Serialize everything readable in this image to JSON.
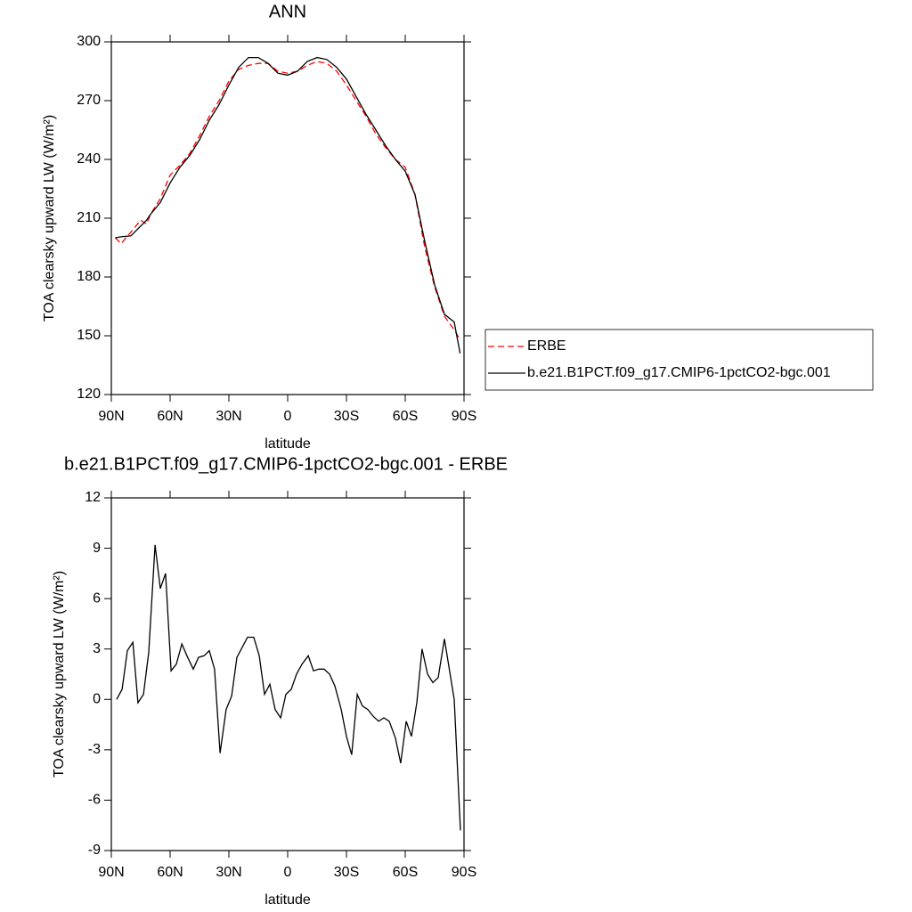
{
  "chart_data": [
    {
      "type": "line",
      "title": "ANN",
      "x_label": "latitude",
      "y_label": "TOA clearsky upward LW (W/m²)",
      "x": [
        88,
        85,
        80,
        75,
        72,
        70,
        65,
        60,
        55,
        50,
        45,
        40,
        35,
        30,
        25,
        20,
        15,
        10,
        5,
        0,
        -5,
        -10,
        -15,
        -20,
        -25,
        -30,
        -35,
        -40,
        -45,
        -50,
        -55,
        -60,
        -65,
        -70,
        -75,
        -80,
        -85,
        -88
      ],
      "series": [
        {
          "name": "ERBE",
          "color": "#ff0000",
          "line_style": "dashed",
          "values": [
            200,
            197,
            203,
            209,
            207,
            212,
            220,
            232,
            237,
            243,
            252,
            262,
            270,
            280,
            286,
            288,
            289,
            289,
            285,
            284,
            285,
            288,
            290,
            289,
            285,
            278,
            270,
            262,
            253,
            246,
            240,
            236,
            222,
            195,
            175,
            160,
            153,
            148
          ]
        },
        {
          "name": "b.e21.B1PCT.f09_g17.CMIP6-1pctCO2-bgc.001",
          "color": "#000000",
          "line_style": "solid",
          "values": [
            200,
            200.5,
            201,
            206,
            209,
            212,
            218,
            228,
            236,
            242,
            250,
            260,
            268,
            278,
            287,
            292,
            292,
            289,
            284,
            283,
            285,
            290,
            292,
            291,
            287,
            281,
            272,
            263,
            255,
            247,
            240,
            234,
            222,
            198,
            176,
            161,
            157,
            141
          ]
        }
      ],
      "xlim": [
        90,
        -90
      ],
      "xticks": [
        {
          "value": 90,
          "label": "90N"
        },
        {
          "value": 60,
          "label": "60N"
        },
        {
          "value": 30,
          "label": "30N"
        },
        0,
        {
          "value": -30,
          "label": "30S"
        },
        {
          "value": -60,
          "label": "60S"
        },
        {
          "value": -90,
          "label": "90S"
        }
      ],
      "ylim": [
        120,
        300
      ],
      "yticks": [
        120,
        150,
        180,
        210,
        240,
        270,
        300
      ],
      "legend": "right"
    },
    {
      "type": "line",
      "title": "b.e21.B1PCT.f09_g17.CMIP6-1pctCO2-bgc.001 - ERBE",
      "x_label": "latitude",
      "y_label": "TOA clearsky upward LW (W/m²)",
      "x": [
        87.3,
        84.5,
        81.8,
        79,
        76.4,
        73.6,
        70.9,
        67.7,
        65,
        62.3,
        59.5,
        56.8,
        54,
        51.4,
        48.2,
        45.5,
        42.7,
        40,
        37.3,
        34.5,
        31.4,
        28.6,
        25.9,
        23.2,
        20.5,
        17.3,
        14.5,
        11.8,
        9.1,
        6.4,
        3.6,
        0.9,
        -1.8,
        -4.5,
        -7.3,
        -10.5,
        -13.2,
        -15.9,
        -18.6,
        -21.4,
        -24.1,
        -27.3,
        -30,
        -32.7,
        -35.5,
        -38.2,
        -40.9,
        -43.6,
        -46.4,
        -49.1,
        -51.8,
        -55,
        -57.7,
        -60.5,
        -63.2,
        -65.9,
        -68.6,
        -71.4,
        -74.1,
        -76.8,
        -80,
        -85,
        -88.2
      ],
      "series": [
        {
          "color": "#000000",
          "line_style": "solid",
          "values": [
            0.0,
            0.6,
            2.9,
            3.4,
            -0.2,
            0.3,
            2.8,
            9.2,
            6.6,
            7.5,
            1.7,
            2.1,
            3.3,
            2.6,
            1.8,
            2.5,
            2.6,
            2.9,
            1.8,
            -3.2,
            -0.6,
            0.2,
            2.5,
            3.1,
            3.7,
            3.7,
            2.6,
            0.3,
            0.9,
            -0.6,
            -1.1,
            0.3,
            0.6,
            1.5,
            2.1,
            2.6,
            1.7,
            1.8,
            1.8,
            1.5,
            0.8,
            -0.6,
            -2.2,
            -3.3,
            0.3,
            -0.4,
            -0.6,
            -1.0,
            -1.3,
            -1.1,
            -1.3,
            -2.3,
            -3.8,
            -1.3,
            -2.2,
            -0.2,
            3.0,
            1.5,
            1.0,
            1.3,
            3.6,
            0.0,
            -7.8
          ]
        }
      ],
      "xlim": [
        90,
        -90
      ],
      "xticks": [
        {
          "value": 90,
          "label": "90N"
        },
        {
          "value": 60,
          "label": "60N"
        },
        {
          "value": 30,
          "label": "30N"
        },
        0,
        {
          "value": -30,
          "label": "30S"
        },
        {
          "value": -60,
          "label": "60S"
        },
        {
          "value": -90,
          "label": "90S"
        }
      ],
      "ylim": [
        -9,
        12
      ],
      "yticks": [
        -9,
        -6,
        -3,
        0,
        3,
        6,
        9,
        12
      ]
    }
  ]
}
